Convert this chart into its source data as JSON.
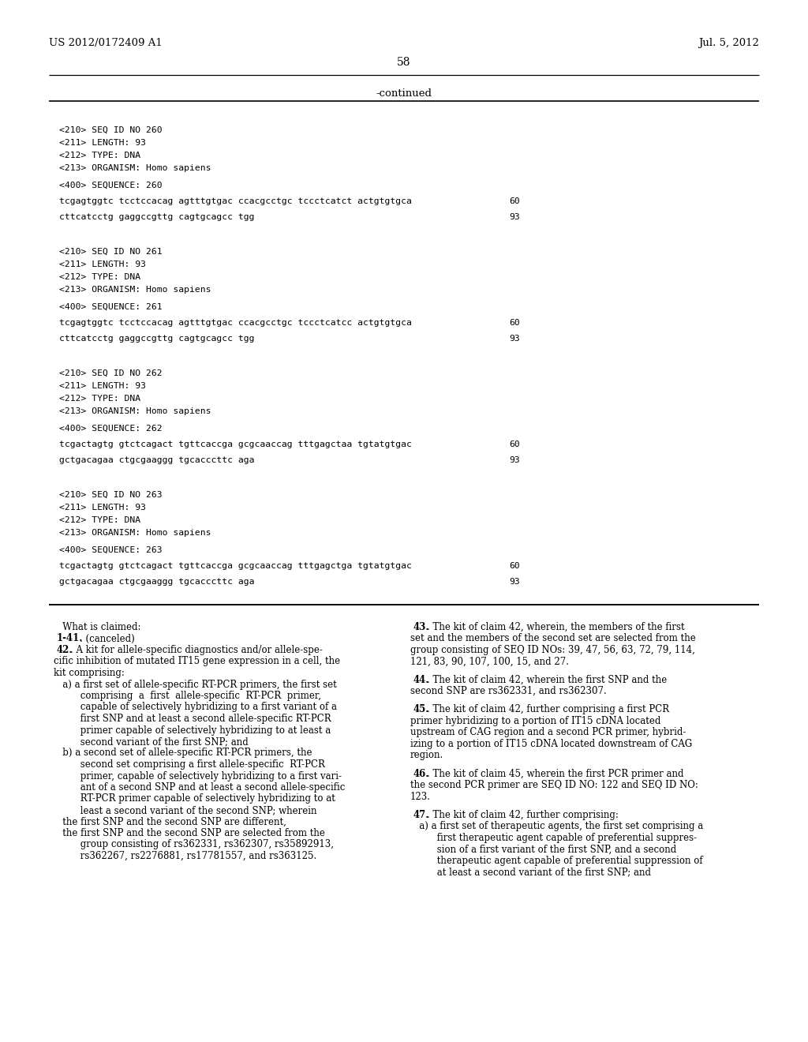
{
  "bg_color": "#ffffff",
  "header_left": "US 2012/0172409 A1",
  "header_right": "Jul. 5, 2012",
  "page_number": "58",
  "continued_label": "-continued",
  "seq_blocks": [
    {
      "id": "260",
      "length": "93",
      "type": "DNA",
      "organism": "Homo sapiens",
      "seq_lines": [
        {
          "text": "tcgagtggtc tcctccacag agtttgtgac ccacgcctgc tccctcatct actgtgtgca",
          "num": "60"
        },
        {
          "text": "cttcatcctg gaggccgttg cagtgcagcc tgg",
          "num": "93"
        }
      ]
    },
    {
      "id": "261",
      "length": "93",
      "type": "DNA",
      "organism": "Homo sapiens",
      "seq_lines": [
        {
          "text": "tcgagtggtc tcctccacag agtttgtgac ccacgcctgc tccctcatcc actgtgtgca",
          "num": "60"
        },
        {
          "text": "cttcatcctg gaggccgttg cagtgcagcc tgg",
          "num": "93"
        }
      ]
    },
    {
      "id": "262",
      "length": "93",
      "type": "DNA",
      "organism": "Homo sapiens",
      "seq_lines": [
        {
          "text": "tcgactagtg gtctcagact tgttcaccga gcgcaaccag tttgagctaa tgtatgtgac",
          "num": "60"
        },
        {
          "text": "gctgacagaa ctgcgaaggg tgcacccttc aga",
          "num": "93"
        }
      ]
    },
    {
      "id": "263",
      "length": "93",
      "type": "DNA",
      "organism": "Homo sapiens",
      "seq_lines": [
        {
          "text": "tcgactagtg gtctcagact tgttcaccga gcgcaaccag tttgagctga tgtatgtgac",
          "num": "60"
        },
        {
          "text": "gctgacagaa ctgcgaaggg tgcacccttc aga",
          "num": "93"
        }
      ]
    }
  ],
  "left_col_lines": [
    {
      "type": "normal",
      "text": "   What is claimed:"
    },
    {
      "type": "bold_prefix",
      "bold": "1-41",
      "rest": ". (canceled)",
      "indent": 4
    },
    {
      "type": "bold_prefix",
      "bold": "42",
      "rest": ". A kit for allele-specific diagnostics and/or allele-spe-",
      "indent": 4
    },
    {
      "type": "normal",
      "text": "cific inhibition of mutated IT15 gene expression in a cell, the"
    },
    {
      "type": "normal",
      "text": "kit comprising:"
    },
    {
      "type": "normal",
      "text": "   a) a first set of allele-specific RT-PCR primers, the first set"
    },
    {
      "type": "normal",
      "text": "         comprising  a  first  allele-specific  RT-PCR  primer,"
    },
    {
      "type": "normal",
      "text": "         capable of selectively hybridizing to a first variant of a"
    },
    {
      "type": "normal",
      "text": "         first SNP and at least a second allele-specific RT-PCR"
    },
    {
      "type": "normal",
      "text": "         primer capable of selectively hybridizing to at least a"
    },
    {
      "type": "normal",
      "text": "         second variant of the first SNP; and"
    },
    {
      "type": "normal",
      "text": "   b) a second set of allele-specific RT-PCR primers, the"
    },
    {
      "type": "normal",
      "text": "         second set comprising a first allele-specific  RT-PCR"
    },
    {
      "type": "normal",
      "text": "         primer, capable of selectively hybridizing to a first vari-"
    },
    {
      "type": "normal",
      "text": "         ant of a second SNP and at least a second allele-specific"
    },
    {
      "type": "normal",
      "text": "         RT-PCR primer capable of selectively hybridizing to at"
    },
    {
      "type": "normal",
      "text": "         least a second variant of the second SNP; wherein"
    },
    {
      "type": "normal",
      "text": "   the first SNP and the second SNP are different,"
    },
    {
      "type": "normal",
      "text": "   the first SNP and the second SNP are selected from the"
    },
    {
      "type": "normal",
      "text": "         group consisting of rs362331, rs362307, rs35892913,"
    },
    {
      "type": "normal",
      "text": "         rs362267, rs2276881, rs17781557, and rs363125."
    }
  ],
  "right_col_lines": [
    {
      "type": "bold_prefix",
      "bold": "43",
      "rest": ". The kit of claim 42, wherein, the members of the first",
      "indent": 4
    },
    {
      "type": "normal",
      "text": "set and the members of the second set are selected from the"
    },
    {
      "type": "normal",
      "text": "group consisting of SEQ ID NOs: 39, 47, 56, 63, 72, 79, 114,"
    },
    {
      "type": "normal",
      "text": "121, 83, 90, 107, 100, 15, and 27."
    },
    {
      "type": "blank"
    },
    {
      "type": "bold_prefix",
      "bold": "44",
      "rest": ". The kit of claim 42, wherein the first SNP and the",
      "indent": 4
    },
    {
      "type": "normal",
      "text": "second SNP are rs362331, and rs362307."
    },
    {
      "type": "blank"
    },
    {
      "type": "bold_prefix",
      "bold": "45",
      "rest": ". The kit of claim 42, further comprising a first PCR",
      "indent": 4
    },
    {
      "type": "normal",
      "text": "primer hybridizing to a portion of IT15 cDNA located"
    },
    {
      "type": "normal",
      "text": "upstream of CAG region and a second PCR primer, hybrid-"
    },
    {
      "type": "normal",
      "text": "izing to a portion of IT15 cDNA located downstream of CAG"
    },
    {
      "type": "normal",
      "text": "region."
    },
    {
      "type": "blank"
    },
    {
      "type": "bold_prefix",
      "bold": "46",
      "rest": ". The kit of claim 45, wherein the first PCR primer and",
      "indent": 4
    },
    {
      "type": "normal",
      "text": "the second PCR primer are SEQ ID NO: 122 and SEQ ID NO:"
    },
    {
      "type": "normal",
      "text": "123."
    },
    {
      "type": "blank"
    },
    {
      "type": "bold_prefix",
      "bold": "47",
      "rest": ". The kit of claim 42, further comprising:",
      "indent": 4
    },
    {
      "type": "normal",
      "text": "   a) a first set of therapeutic agents, the first set comprising a"
    },
    {
      "type": "normal",
      "text": "         first therapeutic agent capable of preferential suppres-"
    },
    {
      "type": "normal",
      "text": "         sion of a first variant of the first SNP, and a second"
    },
    {
      "type": "normal",
      "text": "         therapeutic agent capable of preferential suppression of"
    },
    {
      "type": "normal",
      "text": "         at least a second variant of the first SNP; and"
    }
  ]
}
